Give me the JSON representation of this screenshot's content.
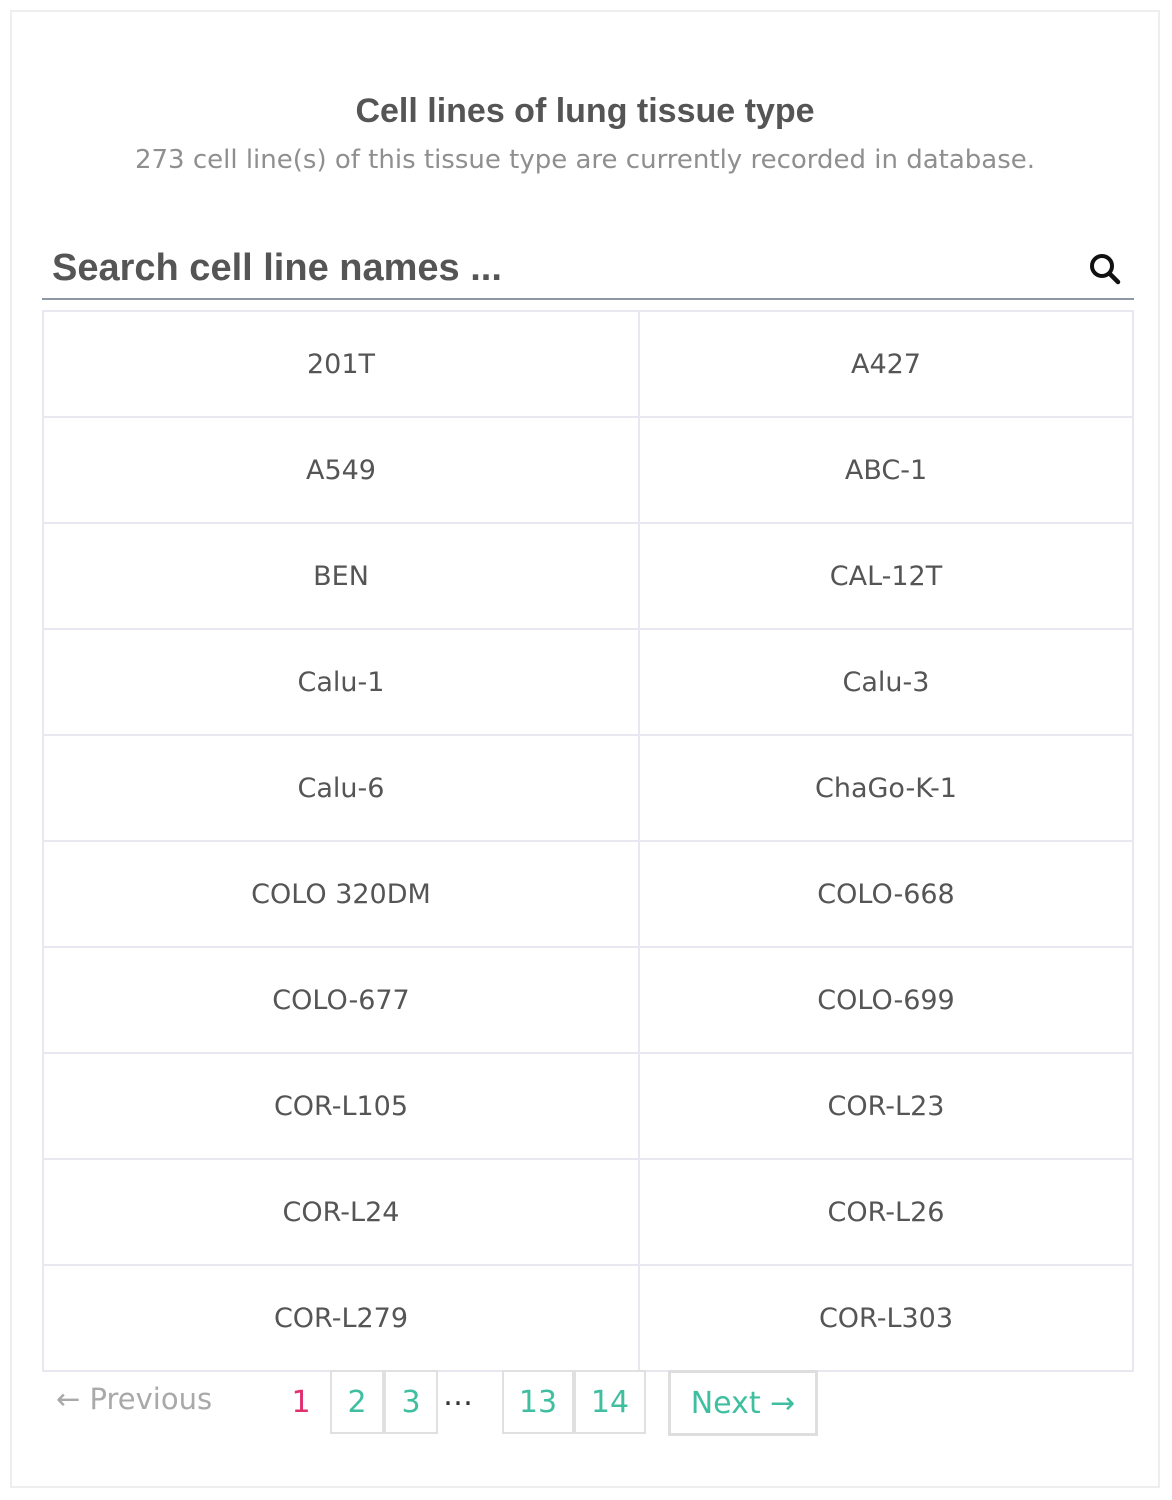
{
  "header": {
    "title": "Cell lines of lung tissue type",
    "subtitle": "273 cell line(s) of this tissue type are currently recorded in database."
  },
  "search": {
    "placeholder": "Search cell line names ...",
    "value": "",
    "icon": "search-icon"
  },
  "cell_lines": [
    [
      "201T",
      "A427"
    ],
    [
      "A549",
      "ABC-1"
    ],
    [
      "BEN",
      "CAL-12T"
    ],
    [
      "Calu-1",
      "Calu-3"
    ],
    [
      "Calu-6",
      "ChaGo-K-1"
    ],
    [
      "COLO 320DM",
      "COLO-668"
    ],
    [
      "COLO-677",
      "COLO-699"
    ],
    [
      "COR-L105",
      "COR-L23"
    ],
    [
      "COR-L24",
      "COR-L26"
    ],
    [
      "COR-L279",
      "COR-L303"
    ]
  ],
  "pagination": {
    "previous_label": "← Previous",
    "pages": [
      "1",
      "2",
      "3",
      "13",
      "14"
    ],
    "current_page": "1",
    "ellipsis": "…",
    "next_label": "Next →",
    "colors": {
      "link": "#3fbfa0",
      "current": "#e0306e",
      "disabled": "#a9a9a9"
    }
  }
}
